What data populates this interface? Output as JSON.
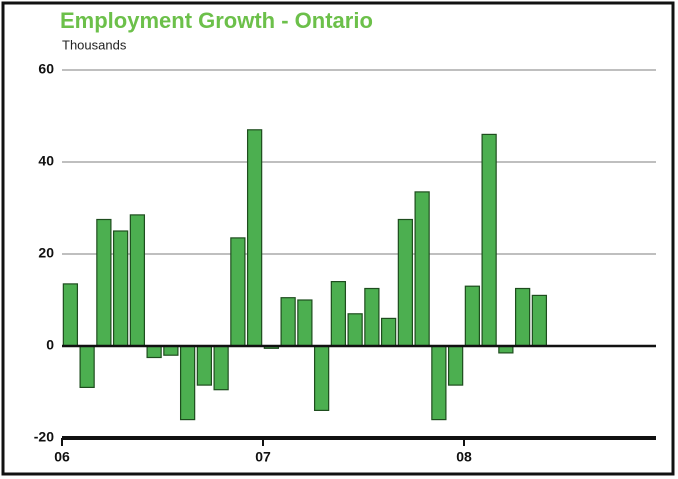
{
  "chart_data": {
    "type": "bar",
    "title": "Employment Growth - Ontario",
    "subtitle": "Thousands",
    "categories": [
      "06",
      null,
      null,
      null,
      null,
      null,
      null,
      null,
      null,
      null,
      null,
      null,
      "07",
      null,
      null,
      null,
      null,
      null,
      null,
      null,
      null,
      null,
      null,
      null,
      "08",
      null,
      null,
      null,
      null
    ],
    "values": [
      13.5,
      -9,
      27.5,
      25,
      28.5,
      -2.5,
      -2,
      -16,
      -8.5,
      -9.5,
      23.5,
      47,
      -0.5,
      10.5,
      10,
      -14,
      14,
      7,
      12.5,
      6,
      27.5,
      33.5,
      -16,
      -8.5,
      13,
      46,
      -1.5,
      12.5,
      11
    ],
    "color": "#4caf50",
    "ylim": [
      -20,
      60
    ],
    "yticks": [
      -20,
      0,
      20,
      40,
      60
    ],
    "grid": true
  }
}
